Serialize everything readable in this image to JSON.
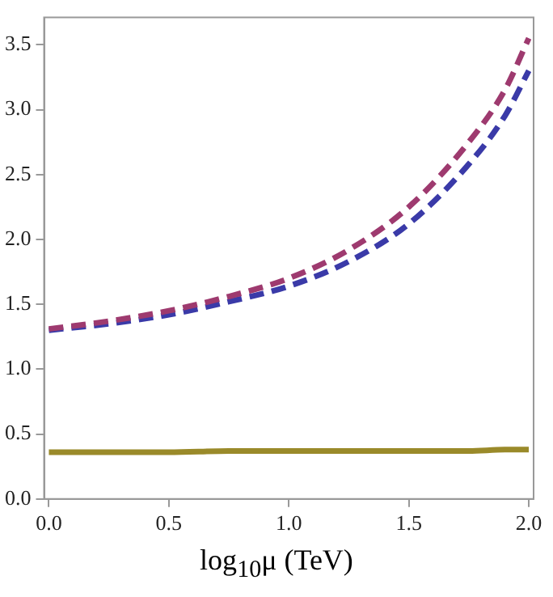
{
  "chart_data": {
    "type": "line",
    "xlabel": "log$_{10}$μ (TeV)",
    "x": [
      0,
      0.25,
      0.5,
      0.75,
      1.0,
      1.25,
      1.5,
      1.75,
      1.9,
      2.0
    ],
    "series": [
      {
        "color": "#9e3a6f",
        "line_style": "dashed",
        "values": [
          1.31,
          1.37,
          1.45,
          1.56,
          1.7,
          1.92,
          2.25,
          2.75,
          3.15,
          3.55
        ]
      },
      {
        "color": "#3a3aa8",
        "line_style": "dashed",
        "values": [
          1.3,
          1.35,
          1.42,
          1.52,
          1.64,
          1.83,
          2.12,
          2.58,
          2.95,
          3.3
        ]
      },
      {
        "color": "#9a8a2a",
        "line_style": "solid",
        "values": [
          0.36,
          0.36,
          0.36,
          0.37,
          0.37,
          0.37,
          0.37,
          0.37,
          0.38,
          0.38
        ]
      }
    ],
    "xlim": [
      -0.02,
      2.02
    ],
    "xticks": [
      {
        "value": 0,
        "label": "0.0"
      },
      0.5,
      {
        "value": 1,
        "label": "1.0"
      },
      1.5,
      {
        "value": 2,
        "label": "2.0"
      }
    ],
    "ylim": [
      0,
      3.71
    ],
    "yticks": [
      {
        "value": 0,
        "label": "0.0"
      },
      0.5,
      {
        "value": 1,
        "label": "1.0"
      },
      1.5,
      {
        "value": 2,
        "label": "2.0"
      },
      2.5,
      {
        "value": 3,
        "label": "3.0"
      },
      3.5
    ],
    "grid": false,
    "legend": false,
    "marker": "none"
  }
}
